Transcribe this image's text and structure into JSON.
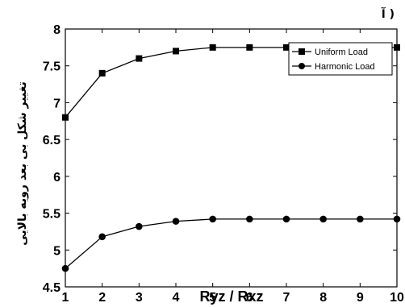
{
  "panel_label": "آ )",
  "chart_data": {
    "type": "line",
    "xlabel": "Ryz / Rxz",
    "ylabel": "تغییر شکل بی بعد رویه بالایی",
    "x": [
      1,
      2,
      3,
      4,
      5,
      6,
      7,
      8,
      9,
      10
    ],
    "xlim": [
      1,
      10
    ],
    "ylim": [
      4.5,
      8
    ],
    "xticks": [
      "1",
      "2",
      "3",
      "4",
      "5",
      "6",
      "7",
      "8",
      "9",
      "10"
    ],
    "yticks": [
      "4.5",
      "5",
      "5.5",
      "6",
      "6.5",
      "7",
      "7.5",
      "8"
    ],
    "grid": false,
    "legend_position": "top-right",
    "series": [
      {
        "name": "Uniform Load",
        "marker": "square",
        "color": "#000000",
        "values": [
          6.8,
          7.4,
          7.6,
          7.7,
          7.75,
          7.75,
          7.75,
          7.75,
          7.75,
          7.75
        ]
      },
      {
        "name": "Harmonic Load",
        "marker": "circle",
        "color": "#000000",
        "values": [
          4.75,
          5.18,
          5.32,
          5.39,
          5.42,
          5.42,
          5.42,
          5.42,
          5.42,
          5.42
        ]
      }
    ]
  }
}
